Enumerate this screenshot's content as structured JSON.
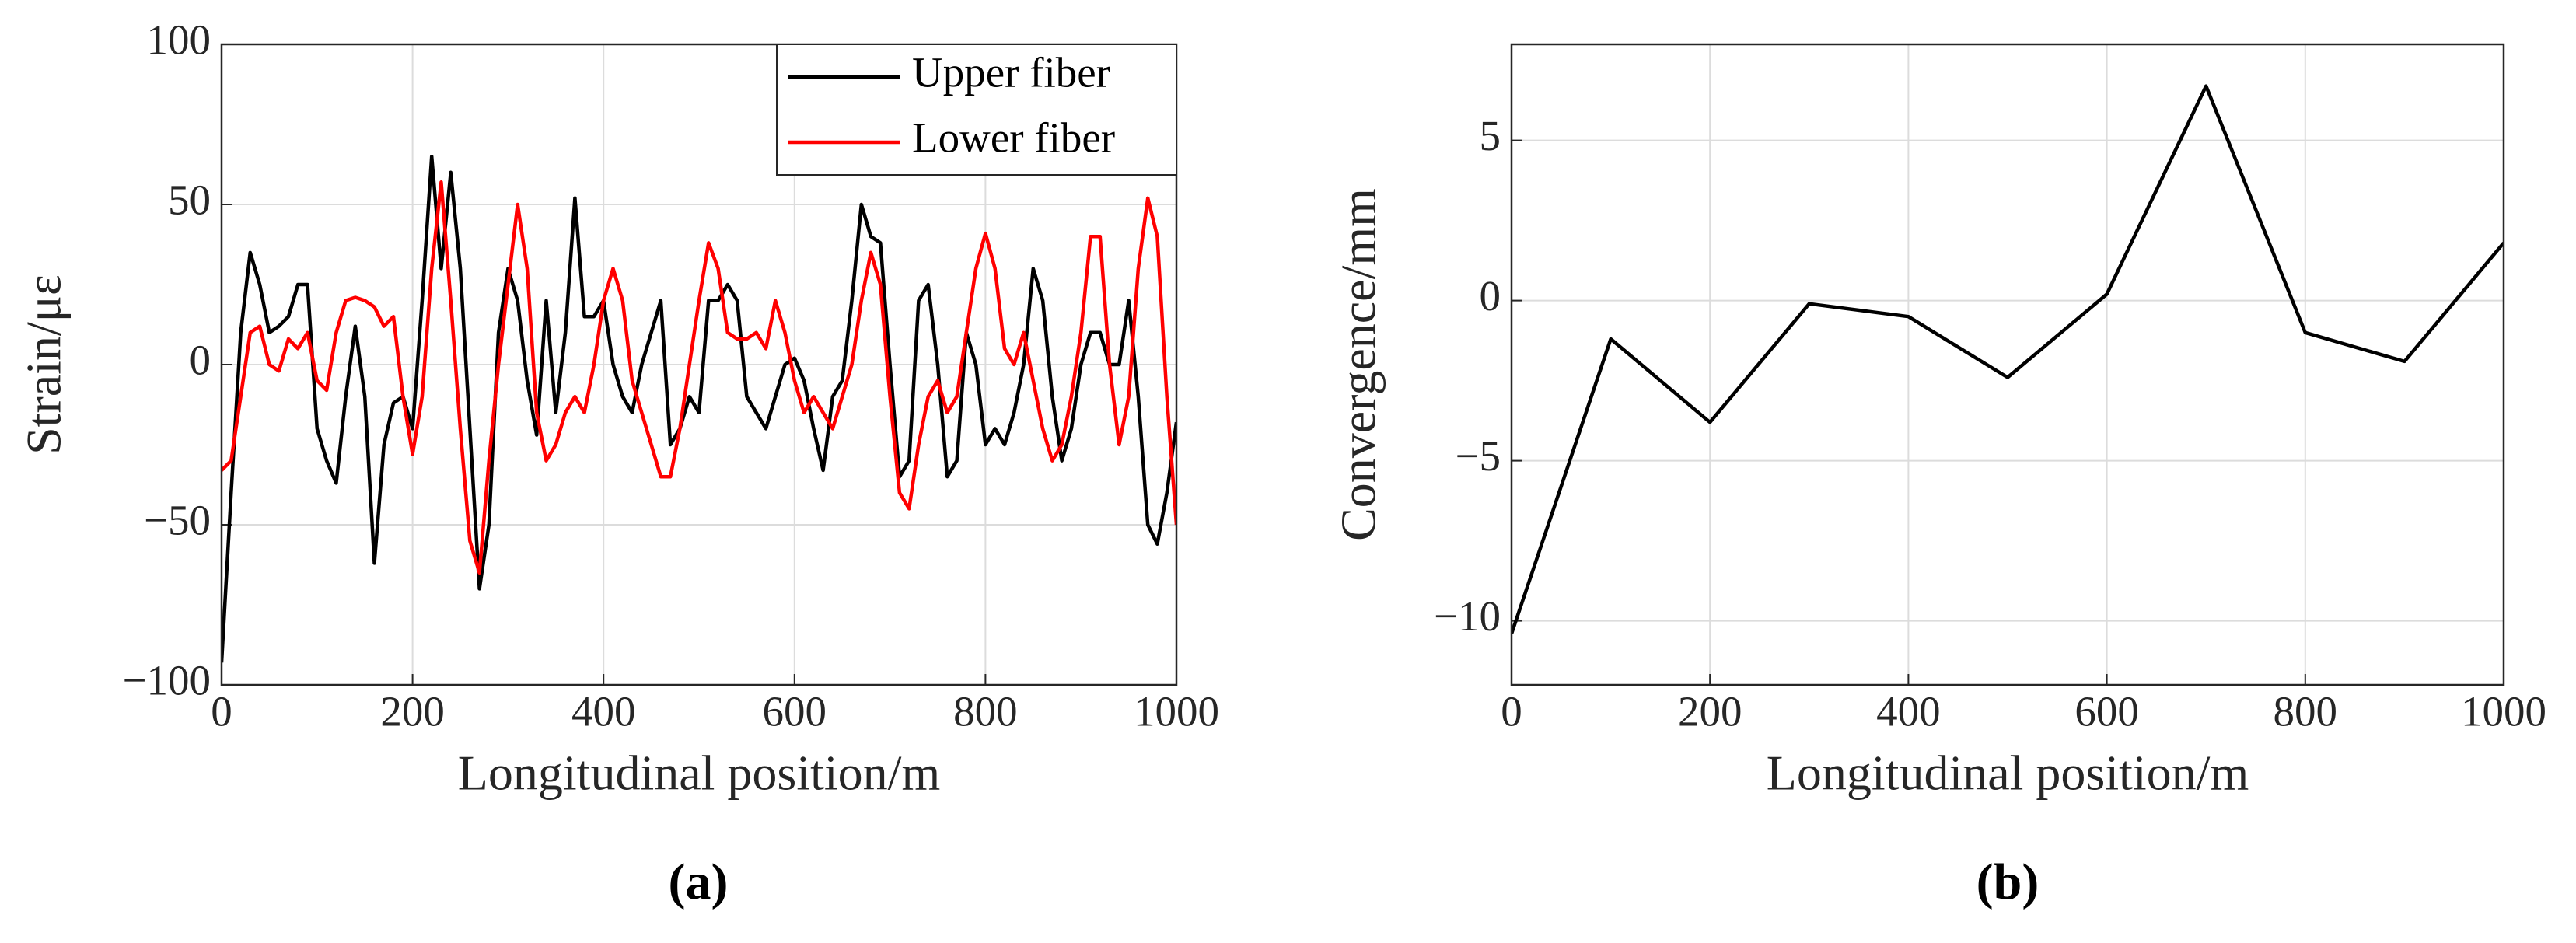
{
  "chart_data": [
    {
      "type": "line",
      "panel_label": "(a)",
      "xlabel": "Longitudinal position/m",
      "ylabel": "Strain/με",
      "xlim": [
        0,
        1000
      ],
      "ylim": [
        -100,
        100
      ],
      "xticks": [
        0,
        200,
        400,
        600,
        800,
        1000
      ],
      "yticks": [
        {
          "value": -100,
          "label": "−100"
        },
        {
          "value": -50,
          "label": "−50"
        },
        0,
        50,
        100
      ],
      "grid": true,
      "legend": "upper right",
      "x": [
        0,
        10,
        20,
        30,
        40,
        50,
        60,
        70,
        80,
        90,
        100,
        110,
        120,
        130,
        140,
        150,
        160,
        170,
        180,
        190,
        200,
        210,
        220,
        230,
        240,
        250,
        260,
        270,
        280,
        290,
        300,
        310,
        320,
        330,
        340,
        350,
        360,
        370,
        380,
        390,
        400,
        410,
        420,
        430,
        440,
        450,
        460,
        470,
        480,
        490,
        500,
        510,
        520,
        530,
        540,
        550,
        560,
        570,
        580,
        590,
        600,
        610,
        620,
        630,
        640,
        650,
        660,
        670,
        680,
        690,
        700,
        710,
        720,
        730,
        740,
        750,
        760,
        770,
        780,
        790,
        800,
        810,
        820,
        830,
        840,
        850,
        860,
        870,
        880,
        890,
        900,
        910,
        920,
        930,
        940,
        950,
        960,
        970,
        980,
        990,
        1000
      ],
      "series": [
        {
          "name": "Upper fiber",
          "color": "#000000",
          "values": [
            -93,
            -40,
            10,
            35,
            25,
            10,
            12,
            15,
            25,
            25,
            -20,
            -30,
            -37,
            -10,
            12,
            -10,
            -62,
            -25,
            -12,
            -10,
            -20,
            20,
            65,
            30,
            60,
            30,
            -20,
            -70,
            -50,
            10,
            30,
            20,
            -5,
            -22,
            20,
            -15,
            10,
            52,
            15,
            15,
            20,
            0,
            -10,
            -15,
            0,
            10,
            20,
            -25,
            -20,
            -10,
            -15,
            20,
            20,
            25,
            20,
            -10,
            -15,
            -20,
            -10,
            0,
            2,
            -5,
            -20,
            -33,
            -10,
            -5,
            20,
            50,
            40,
            38,
            0,
            -35,
            -30,
            20,
            25,
            0,
            -35,
            -30,
            10,
            0,
            -25,
            -20,
            -25,
            -15,
            0,
            30,
            20,
            -10,
            -30,
            -20,
            0,
            10,
            10,
            0,
            0,
            20,
            -10,
            -50,
            -56,
            -40,
            -18
          ]
        },
        {
          "name": "Lower fiber",
          "color": "#ff0000",
          "values": [
            -33,
            -30,
            -10,
            10,
            12,
            0,
            -2,
            8,
            5,
            10,
            -5,
            -8,
            10,
            20,
            21,
            20,
            18,
            12,
            15,
            -10,
            -28,
            -10,
            30,
            57,
            20,
            -20,
            -55,
            -65,
            -30,
            0,
            25,
            50,
            30,
            -15,
            -30,
            -25,
            -15,
            -10,
            -15,
            0,
            20,
            30,
            20,
            -5,
            -15,
            -25,
            -35,
            -35,
            -20,
            0,
            20,
            38,
            30,
            10,
            8,
            8,
            10,
            5,
            20,
            10,
            -5,
            -15,
            -10,
            -15,
            -20,
            -10,
            0,
            20,
            35,
            25,
            -10,
            -40,
            -45,
            -25,
            -10,
            -5,
            -15,
            -10,
            10,
            30,
            41,
            30,
            5,
            0,
            10,
            -5,
            -20,
            -30,
            -25,
            -10,
            10,
            40,
            40,
            0,
            -25,
            -10,
            30,
            52,
            40,
            -10,
            -50
          ]
        }
      ]
    },
    {
      "type": "line",
      "panel_label": "(b)",
      "xlabel": "Longitudinal position/m",
      "ylabel": "Convergence/mm",
      "xlim": [
        0,
        1000
      ],
      "ylim": [
        -12,
        8
      ],
      "xticks": [
        0,
        200,
        400,
        600,
        800,
        1000
      ],
      "yticks": [
        {
          "value": -10,
          "label": "−10"
        },
        {
          "value": -5,
          "label": "−5"
        },
        0,
        5
      ],
      "grid": true,
      "x": [
        0,
        100,
        200,
        300,
        400,
        500,
        600,
        700,
        800,
        900,
        1000
      ],
      "series": [
        {
          "color": "#000000",
          "values": [
            -10.4,
            -1.2,
            -3.8,
            -0.1,
            -0.5,
            -2.4,
            0.2,
            6.7,
            -1.0,
            -1.9,
            1.8
          ]
        }
      ]
    }
  ]
}
